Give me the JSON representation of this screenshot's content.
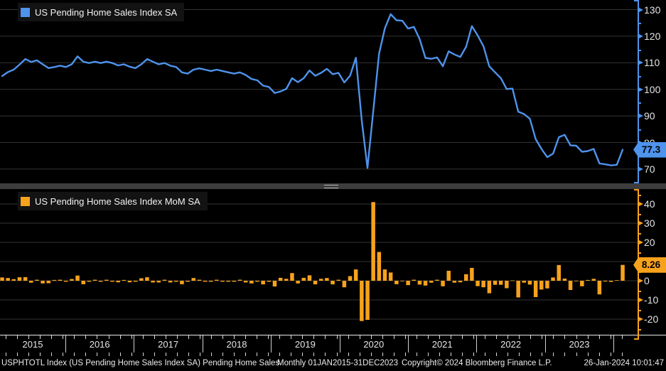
{
  "colors": {
    "line_blue": "#4e93ec",
    "bar_orange": "#f7a21d",
    "grid": "#343434",
    "axis_text": "#e4e4e4",
    "background": "#000000"
  },
  "chart_data": [
    {
      "type": "line",
      "title": "US Pending Home Sales Index SA",
      "frequency": "monthly",
      "start": "Jan 2015",
      "end": "Dec 2023",
      "last_value_label": "77.3",
      "y_ticks": [
        130,
        120,
        110,
        100,
        90,
        80,
        70
      ],
      "ylim": [
        64.6,
        133.6
      ],
      "legend_position": "top-left",
      "grid": true,
      "values": [
        105.0,
        106.5,
        107.4,
        109.3,
        111.4,
        110.3,
        110.9,
        109.4,
        108.0,
        108.4,
        108.9,
        108.4,
        109.4,
        112.4,
        110.4,
        109.9,
        110.4,
        109.9,
        110.4,
        109.9,
        109.0,
        109.4,
        108.5,
        108.0,
        109.4,
        111.4,
        110.4,
        109.4,
        109.9,
        108.9,
        108.4,
        106.4,
        105.9,
        107.4,
        107.9,
        107.4,
        106.9,
        107.4,
        106.9,
        106.4,
        105.9,
        106.4,
        105.4,
        103.9,
        103.4,
        101.4,
        100.9,
        98.6,
        99.2,
        100.2,
        104.2,
        102.7,
        104.2,
        107.1,
        105.1,
        106.2,
        107.7,
        105.7,
        106.2,
        102.6,
        105.1,
        111.9,
        88.4,
        70.4,
        92.0,
        113.4,
        123.0,
        128.3,
        126.0,
        125.8,
        122.9,
        123.5,
        118.9,
        111.8,
        111.5,
        112.0,
        108.7,
        114.3,
        113.1,
        112.2,
        116.0,
        123.8,
        120.3,
        116.2,
        108.7,
        106.4,
        104.2,
        100.1,
        100.3,
        91.6,
        90.7,
        88.9,
        81.3,
        77.6,
        74.5,
        75.8,
        82.0,
        82.9,
        78.9,
        78.8,
        76.5,
        76.8,
        77.6,
        72.1,
        71.8,
        71.4,
        71.6,
        77.3
      ]
    },
    {
      "type": "bar",
      "title": "US Pending Home Sales Index MoM SA",
      "frequency": "monthly",
      "start": "Jan 2015",
      "end": "Dec 2023",
      "last_value_label": "8.26",
      "y_ticks": [
        40,
        30,
        20,
        10,
        0,
        -10,
        -20
      ],
      "ylim": [
        -28.1,
        47.8
      ],
      "legend_position": "top-left",
      "grid": true,
      "values": [
        1.7,
        1.4,
        0.8,
        1.8,
        1.9,
        -1.0,
        0.5,
        -1.4,
        -1.3,
        0.4,
        0.5,
        -0.5,
        0.9,
        2.7,
        -1.8,
        -0.5,
        0.5,
        -0.5,
        0.5,
        -0.5,
        -0.8,
        0.4,
        -0.8,
        -0.5,
        1.3,
        1.8,
        -0.9,
        -0.9,
        0.5,
        -0.9,
        -0.5,
        -1.8,
        -0.5,
        1.4,
        0.5,
        -0.5,
        -0.5,
        0.5,
        -0.5,
        -0.5,
        -0.5,
        0.5,
        -0.9,
        -1.4,
        -0.5,
        -1.9,
        -0.5,
        -3.0,
        1.5,
        1.0,
        4.0,
        -1.4,
        1.5,
        2.8,
        -1.9,
        1.0,
        1.4,
        -1.9,
        0.5,
        -3.4,
        2.4,
        5.9,
        -21.0,
        -20.4,
        41.0,
        15.0,
        5.9,
        4.3,
        -1.8,
        -0.2,
        -2.3,
        0.5,
        -2.0,
        -2.5,
        -1.0,
        0.5,
        -2.9,
        5.2,
        -1.0,
        -0.8,
        3.4,
        6.7,
        -2.8,
        -3.4,
        -6.5,
        -2.1,
        -2.1,
        -3.9,
        0.2,
        -8.7,
        -1.0,
        -2.0,
        -8.5,
        -4.6,
        -4.0,
        1.7,
        8.2,
        1.1,
        -4.8,
        -0.1,
        -2.9,
        0.4,
        1.0,
        -7.1,
        -0.4,
        -0.6,
        0.3,
        8.26
      ]
    }
  ],
  "x_axis": {
    "years": [
      "2015",
      "2016",
      "2017",
      "2018",
      "2019",
      "2020",
      "2021",
      "2022",
      "2023"
    ]
  },
  "status_bar": {
    "instrument": "USPHTOTL Index (US Pending Home Sales Index SA) Pending Home Sales",
    "periodicity_range": "Monthly 01JAN2015-31DEC2023",
    "copyright": "Copyright© 2024 Bloomberg Finance L.P.",
    "timestamp": "26-Jan-2024 10:01:47"
  }
}
